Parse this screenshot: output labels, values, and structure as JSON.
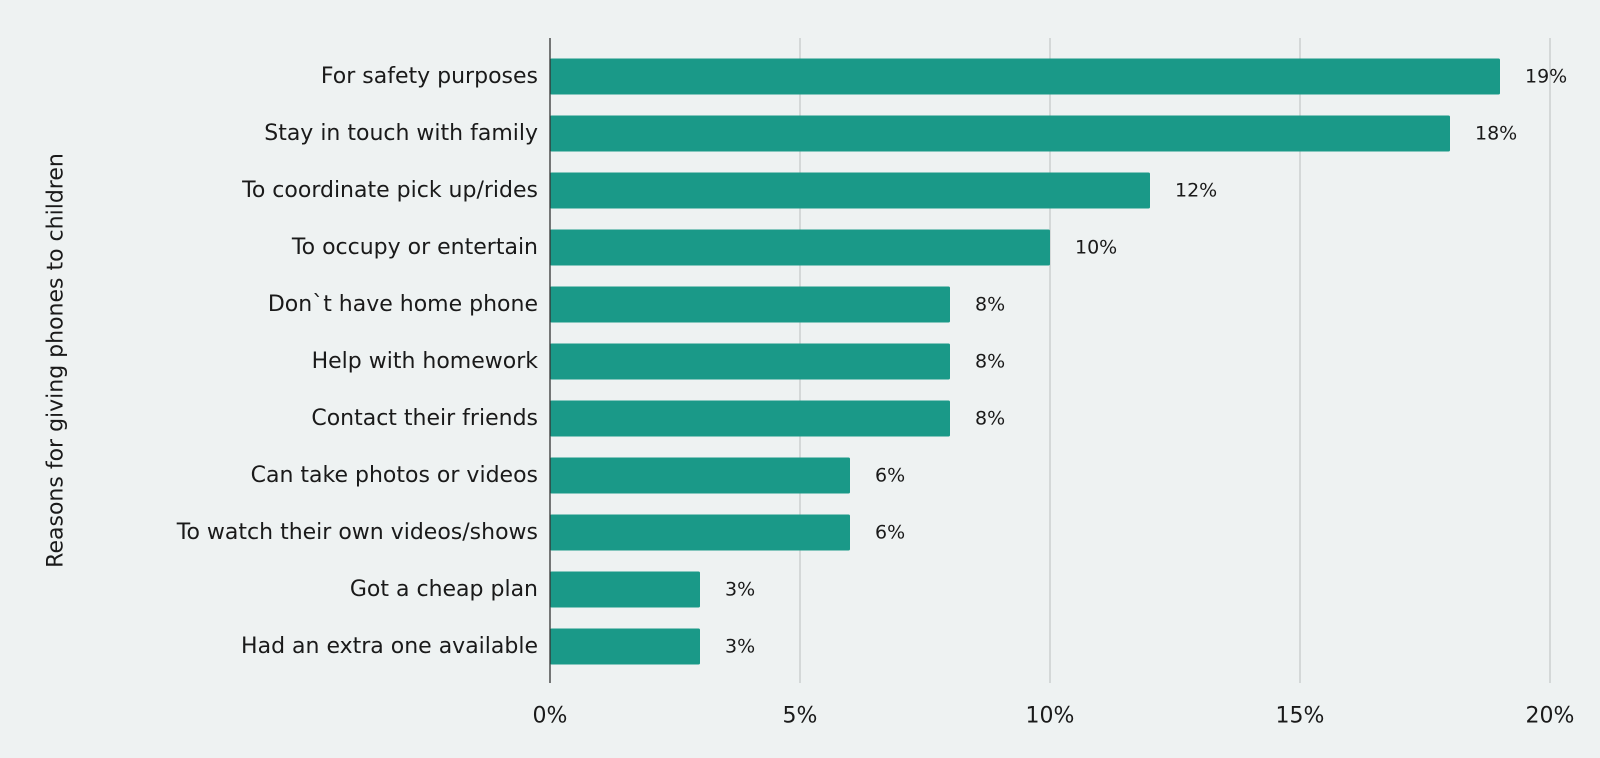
{
  "chart_data": {
    "type": "bar",
    "orientation": "horizontal",
    "ylabel": "Reasons for giving phones to children",
    "xlabel": "",
    "categories": [
      "For safety purposes",
      "Stay in touch with family",
      "To coordinate pick up/rides",
      "To occupy or entertain",
      "Don`t have home phone",
      "Help with homework",
      "Contact their friends",
      "Can take photos or videos",
      "To watch their own videos/shows",
      "Got a cheap plan",
      "Had an extra one available"
    ],
    "values": [
      19,
      18,
      12,
      10,
      8,
      8,
      8,
      6,
      6,
      3,
      3
    ],
    "value_labels": [
      "19%",
      "18%",
      "12%",
      "10%",
      "8%",
      "8%",
      "8%",
      "6%",
      "6%",
      "3%",
      "3%"
    ],
    "xlim": [
      0,
      20
    ],
    "x_ticks": [
      0,
      5,
      10,
      15,
      20
    ],
    "x_tick_labels": [
      "0%",
      "5%",
      "10%",
      "15%",
      "20%"
    ],
    "grid": "vertical",
    "bar_color": "#1a9988",
    "grid_color": "#c4c8c8",
    "background": "#eef2f2"
  }
}
